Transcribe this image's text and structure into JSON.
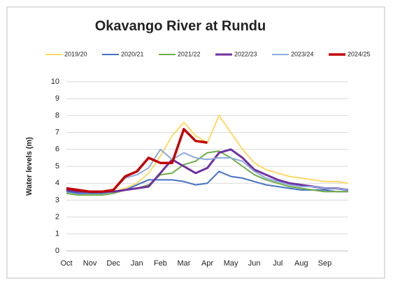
{
  "chart_data": {
    "type": "line",
    "title": "Okavango River at Rundu",
    "y_label": "Water levels (m)",
    "categories": [
      "Oct",
      null,
      "Nov",
      null,
      "Dec",
      null,
      "Jan",
      null,
      "Feb",
      null,
      "Mar",
      null,
      "Apr",
      null,
      "May",
      null,
      "Jun",
      null,
      "Jul",
      null,
      "Aug",
      null,
      "Sep",
      null,
      null
    ],
    "ylim": [
      0,
      10
    ],
    "yticks": [
      0,
      1,
      2,
      3,
      4,
      5,
      6,
      7,
      8,
      9,
      10
    ],
    "grid": true,
    "series": [
      {
        "name": "2019/20",
        "color": "#ffd966",
        "width": 2,
        "values": [
          3.6,
          3.5,
          3.4,
          3.4,
          3.5,
          3.7,
          4.0,
          4.6,
          5.6,
          6.8,
          7.6,
          6.8,
          6.4,
          8.0,
          7.0,
          6.0,
          5.2,
          4.8,
          4.6,
          4.4,
          4.3,
          4.2,
          4.1,
          4.1,
          4.0
        ]
      },
      {
        "name": "2020/21",
        "color": "#4472c4",
        "width": 2,
        "values": [
          3.5,
          3.4,
          3.4,
          3.4,
          3.5,
          3.6,
          3.9,
          4.2,
          4.2,
          4.2,
          4.1,
          3.9,
          4.0,
          4.7,
          4.4,
          4.3,
          4.1,
          3.9,
          3.8,
          3.7,
          3.6,
          3.6,
          3.6,
          3.5,
          3.5
        ]
      },
      {
        "name": "2021/22",
        "color": "#70ad47",
        "width": 2,
        "values": [
          3.4,
          3.3,
          3.3,
          3.3,
          3.4,
          3.6,
          3.7,
          3.9,
          4.5,
          4.6,
          5.1,
          5.3,
          5.8,
          5.9,
          5.5,
          5.0,
          4.5,
          4.2,
          4.0,
          3.8,
          3.7,
          3.6,
          3.5,
          3.5,
          3.5
        ]
      },
      {
        "name": "2022/23",
        "color": "#7030a0",
        "width": 3,
        "values": [
          3.6,
          3.5,
          3.5,
          3.5,
          3.5,
          3.6,
          3.7,
          3.8,
          4.6,
          5.4,
          5.0,
          4.6,
          4.9,
          5.8,
          6.0,
          5.5,
          4.8,
          4.5,
          4.2,
          4.0,
          3.9,
          3.8,
          3.7,
          3.7,
          3.6
        ]
      },
      {
        "name": "2023/24",
        "color": "#8eaadb",
        "width": 2,
        "values": [
          3.7,
          3.6,
          3.5,
          3.5,
          3.6,
          4.3,
          4.5,
          4.9,
          6.0,
          5.4,
          5.8,
          5.5,
          5.4,
          5.5,
          5.5,
          5.3,
          4.7,
          4.3,
          4.1,
          3.9,
          3.8,
          3.8,
          3.7,
          3.7,
          3.6
        ]
      },
      {
        "name": "2024/25",
        "color": "#c00000",
        "width": 3.5,
        "values": [
          3.7,
          3.6,
          3.5,
          3.5,
          3.6,
          4.4,
          4.7,
          5.5,
          5.2,
          5.2,
          7.2,
          6.5,
          6.4,
          null,
          null,
          null,
          null,
          null,
          null,
          null,
          null,
          null,
          null,
          null,
          null
        ]
      }
    ]
  }
}
